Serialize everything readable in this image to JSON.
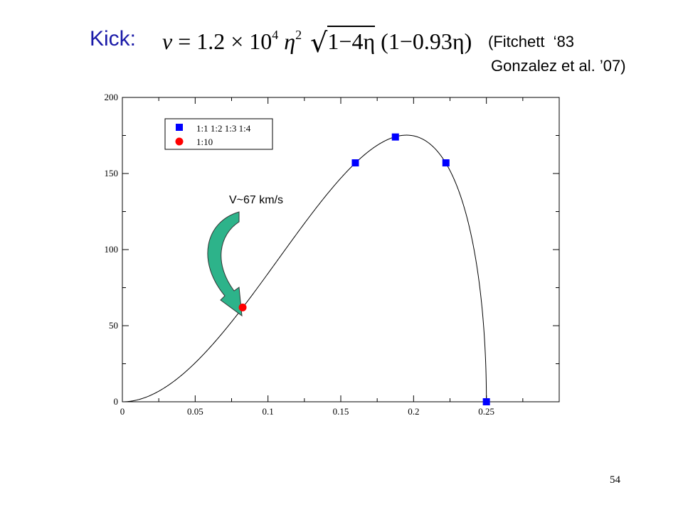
{
  "header": {
    "kick_label": "Kick:",
    "formula": {
      "lhs": "v",
      "equals": "=",
      "coef": "1.2",
      "times": "×",
      "base": "10",
      "base_exp": "4",
      "eta": "η",
      "eta_exp": "2",
      "sqrt_content": "1−4η",
      "tail": "(1−0.93η)"
    },
    "ref_line1": "(Fitchett  ‘83",
    "ref_line2": "Gonzalez et al. ’07)"
  },
  "page_number": "54",
  "chart_data": {
    "type": "scatter",
    "title": "",
    "xlabel": "",
    "ylabel": "",
    "xlim": [
      0,
      0.3
    ],
    "ylim": [
      0,
      200
    ],
    "x_ticks": [
      "0",
      "0.05",
      "0.1",
      "0.15",
      "0.2",
      "0.25"
    ],
    "y_ticks": [
      "0",
      "50",
      "100",
      "150",
      "200"
    ],
    "grid": false,
    "legend_position": "top-left",
    "curve": {
      "equation": "v = 1.2e4 * eta^2 * sqrt(1-4*eta) * (1-0.93*eta)",
      "x_range": [
        0,
        0.25
      ],
      "color": "#000000"
    },
    "series": [
      {
        "name": "1:1 1:2 1:3 1:4",
        "marker": "square",
        "color": "#0000ff",
        "x": [
          0.16,
          0.1875,
          0.2222,
          0.25
        ],
        "y": [
          157,
          174,
          157,
          0
        ]
      },
      {
        "name": "1:10",
        "marker": "circle",
        "color": "#ff0000",
        "x": [
          0.0826
        ],
        "y": [
          62
        ]
      }
    ],
    "annotation": {
      "text": "V~67 km/s",
      "arrow_color": "#2db38a",
      "points_to": {
        "x": 0.0826,
        "y": 62
      }
    }
  }
}
